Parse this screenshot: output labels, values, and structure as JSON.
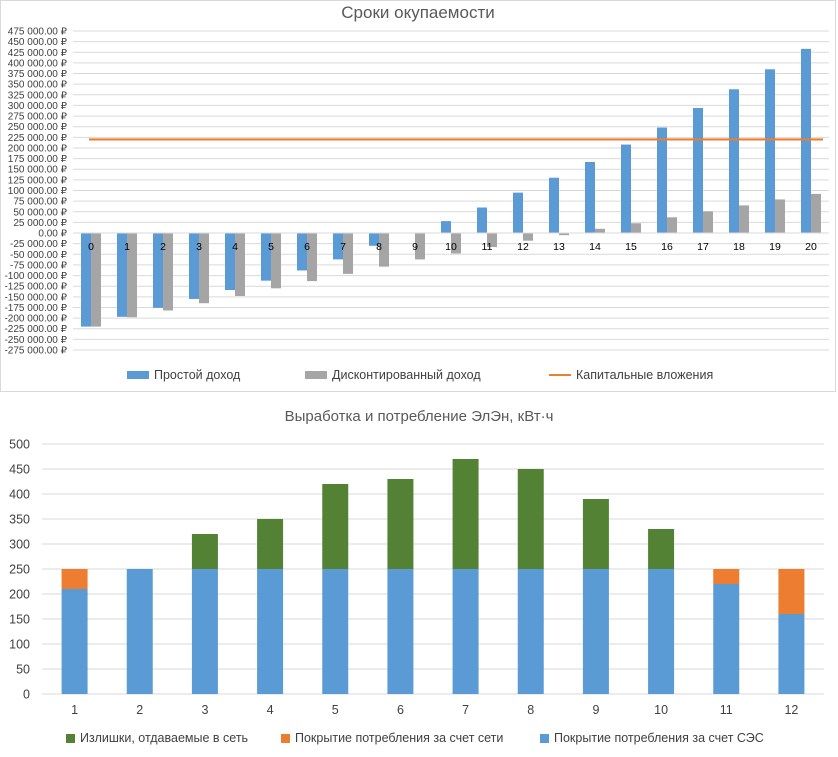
{
  "colors": {
    "simple": "#5b9bd5",
    "discounted": "#a5a5a5",
    "capital": "#ed7d31",
    "surplus": "#548235",
    "grid_cover": "#ed7d31",
    "ses_cover": "#5b9bd5",
    "gridline": "#d9d9d9",
    "axis_text": "#404040"
  },
  "chart_data": [
    {
      "type": "bar",
      "title": "Сроки окупаемости",
      "categories": [
        "0",
        "1",
        "2",
        "3",
        "4",
        "5",
        "6",
        "7",
        "8",
        "9",
        "10",
        "11",
        "12",
        "13",
        "14",
        "15",
        "16",
        "17",
        "18",
        "19",
        "20"
      ],
      "series": [
        {
          "name": "Простой доход",
          "values": [
            -220000,
            -197000,
            -176000,
            -155000,
            -134000,
            -112000,
            -88000,
            -62000,
            -30000,
            0,
            28000,
            60000,
            95000,
            130000,
            167000,
            208000,
            248000,
            294000,
            338000,
            385000,
            433000
          ]
        },
        {
          "name": "Дисконтированный доход",
          "values": [
            -220000,
            -198000,
            -182000,
            -165000,
            -148000,
            -130000,
            -113000,
            -96000,
            -79000,
            -62000,
            -48000,
            -33000,
            -18000,
            -5000,
            10000,
            23000,
            37000,
            51000,
            65000,
            79000,
            92000
          ]
        },
        {
          "name": "Капитальные вложения",
          "type": "line",
          "value": 220000
        }
      ],
      "ylim": [
        -275000,
        475000
      ],
      "ytick_step": 25000,
      "ytick_labels": [
        "475 000.00 ₽",
        "450 000.00 ₽",
        "425 000.00 ₽",
        "400 000.00 ₽",
        "375 000.00 ₽",
        "350 000.00 ₽",
        "325 000.00 ₽",
        "300 000.00 ₽",
        "275 000.00 ₽",
        "250 000.00 ₽",
        "225 000.00 ₽",
        "200 000.00 ₽",
        "175 000.00 ₽",
        "150 000.00 ₽",
        "125 000.00 ₽",
        "100 000.00 ₽",
        "75 000.00 ₽",
        "50 000.00 ₽",
        "25 000.00 ₽",
        "0.00 ₽",
        "-25 000.00 ₽",
        "-50 000.00 ₽",
        "-75 000.00 ₽",
        "-100 000.00 ₽",
        "-125 000.00 ₽",
        "-150 000.00 ₽",
        "-175 000.00 ₽",
        "-200 000.00 ₽",
        "-225 000.00 ₽",
        "-250 000.00 ₽",
        "-275 000.00 ₽"
      ],
      "legend": [
        "Простой доход",
        "Дисконтированный доход",
        "Капитальные вложения"
      ],
      "legend_position": "bottom"
    },
    {
      "type": "bar",
      "stacked": true,
      "title": "Выработка и потребление ЭлЭн, кВт·ч",
      "categories": [
        "1",
        "2",
        "3",
        "4",
        "5",
        "6",
        "7",
        "8",
        "9",
        "10",
        "11",
        "12"
      ],
      "series": [
        {
          "name": "Покрытие потребления за счет СЭС",
          "values": [
            210,
            250,
            250,
            250,
            250,
            250,
            250,
            250,
            250,
            250,
            220,
            160
          ]
        },
        {
          "name": "Покрытие потребления за счет сети",
          "values": [
            40,
            0,
            0,
            0,
            0,
            0,
            0,
            0,
            0,
            0,
            30,
            90
          ]
        },
        {
          "name": "Излишки, отдаваемые в сеть",
          "values": [
            0,
            0,
            70,
            100,
            170,
            180,
            220,
            200,
            140,
            80,
            0,
            0
          ]
        }
      ],
      "ylim": [
        0,
        500
      ],
      "ytick_step": 50,
      "ytick_labels": [
        "0",
        "50",
        "100",
        "150",
        "200",
        "250",
        "300",
        "350",
        "400",
        "450",
        "500"
      ],
      "legend": [
        "Излишки, отдаваемые в сеть",
        "Покрытие потребления за счет сети",
        "Покрытие потребления за счет СЭС"
      ],
      "legend_position": "bottom"
    }
  ]
}
